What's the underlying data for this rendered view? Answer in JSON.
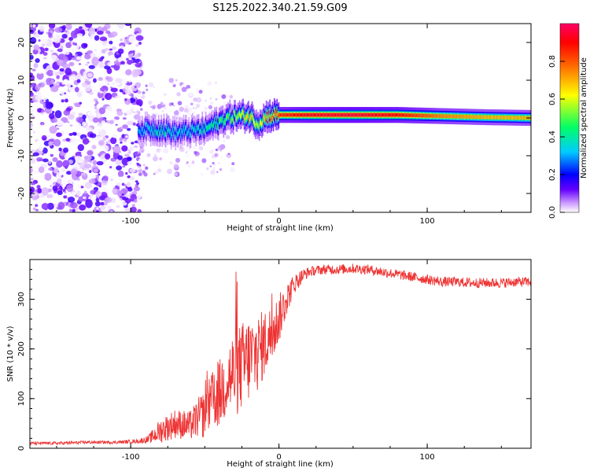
{
  "figure": {
    "title": "S125.2022.340.21.59.G09"
  },
  "chart_data": [
    {
      "type": "heatmap",
      "title": "S125.2022.340.21.59.G09",
      "xlabel": "Height of straight line (km)",
      "ylabel": "Frequency (Hz)",
      "xlim": [
        -168,
        170
      ],
      "ylim": [
        -25,
        25
      ],
      "xticks": [
        {
          "value": -100,
          "label": "-100"
        },
        {
          "value": 0,
          "label": "0"
        },
        {
          "value": 100,
          "label": "100"
        }
      ],
      "yticks": [
        {
          "value": -20,
          "label": "-20"
        },
        {
          "value": -10,
          "label": "-10"
        },
        {
          "value": 0,
          "label": "0"
        },
        {
          "value": 10,
          "label": "10"
        },
        {
          "value": 20,
          "label": "20"
        }
      ],
      "colorbar": {
        "label": "Normalized spectral amplitude",
        "range": [
          0,
          1
        ],
        "ticks": [
          {
            "value": 0.0,
            "label": "0.0"
          },
          {
            "value": 0.2,
            "label": "0.2"
          },
          {
            "value": 0.4,
            "label": "0.4"
          },
          {
            "value": 0.6,
            "label": "0.6"
          },
          {
            "value": 0.8,
            "label": "0.8"
          }
        ],
        "colormap": [
          "#ffffff",
          "#cc99ff",
          "#6600ff",
          "#0000ff",
          "#00ccff",
          "#00ff66",
          "#ffff00",
          "#ff6600",
          "#ff0000",
          "#ff0066"
        ]
      },
      "ridge": [
        {
          "x": -95,
          "y": -3.0,
          "amp": 0.3
        },
        {
          "x": -80,
          "y": -3.0,
          "amp": 0.4
        },
        {
          "x": -70,
          "y": -4.0,
          "amp": 0.35
        },
        {
          "x": -60,
          "y": -3.5,
          "amp": 0.35
        },
        {
          "x": -50,
          "y": -3.0,
          "amp": 0.4
        },
        {
          "x": -42,
          "y": -1.5,
          "amp": 0.45
        },
        {
          "x": -35,
          "y": 0.0,
          "amp": 0.5
        },
        {
          "x": -28,
          "y": 0.5,
          "amp": 0.55
        },
        {
          "x": -20,
          "y": 0.5,
          "amp": 0.7
        },
        {
          "x": -14,
          "y": -1.5,
          "amp": 0.55
        },
        {
          "x": -8,
          "y": 0.5,
          "amp": 0.75
        },
        {
          "x": 0,
          "y": 0.8,
          "amp": 0.85
        },
        {
          "x": 20,
          "y": 0.8,
          "amp": 0.92
        },
        {
          "x": 50,
          "y": 0.8,
          "amp": 0.95
        },
        {
          "x": 80,
          "y": 0.8,
          "amp": 0.9
        },
        {
          "x": 110,
          "y": 0.5,
          "amp": 0.75
        },
        {
          "x": 140,
          "y": 0.2,
          "amp": 0.7
        },
        {
          "x": 170,
          "y": 0.0,
          "amp": 0.7
        }
      ]
    },
    {
      "type": "line",
      "xlabel": "Height of straight line (km)",
      "ylabel": "SNR (10 * v/v)",
      "xlim": [
        -168,
        170
      ],
      "ylim": [
        0,
        380
      ],
      "xticks": [
        {
          "value": -100,
          "label": "-100"
        },
        {
          "value": 0,
          "label": "0"
        },
        {
          "value": 100,
          "label": "100"
        }
      ],
      "yticks": [
        {
          "value": 0,
          "label": "0"
        },
        {
          "value": 100,
          "label": "100"
        },
        {
          "value": 200,
          "label": "200"
        },
        {
          "value": 300,
          "label": "300"
        }
      ],
      "color": "#ee3333",
      "series": [
        {
          "x": [
            -168,
            -150,
            -130,
            -110,
            -95,
            -88,
            -80,
            -70,
            -60,
            -55,
            -50,
            -45,
            -40,
            -35,
            -30,
            -25,
            -20,
            -15,
            -10,
            -5,
            0,
            5,
            10,
            15,
            20,
            25,
            30,
            40,
            50,
            60,
            70,
            80,
            90,
            100,
            110,
            120,
            130,
            140,
            150,
            160,
            170
          ],
          "y": [
            10,
            10,
            12,
            12,
            14,
            18,
            35,
            50,
            45,
            60,
            70,
            95,
            110,
            140,
            150,
            165,
            180,
            190,
            210,
            230,
            260,
            300,
            330,
            345,
            355,
            358,
            360,
            360,
            362,
            360,
            355,
            350,
            345,
            340,
            335,
            335,
            333,
            333,
            333,
            335,
            335
          ],
          "noise": [
            3,
            3,
            3,
            3,
            4,
            8,
            25,
            30,
            30,
            40,
            50,
            60,
            70,
            80,
            90,
            90,
            90,
            80,
            70,
            60,
            50,
            35,
            20,
            15,
            10,
            10,
            10,
            10,
            10,
            10,
            10,
            10,
            10,
            10,
            10,
            10,
            10,
            10,
            10,
            10,
            10
          ]
        }
      ]
    }
  ]
}
